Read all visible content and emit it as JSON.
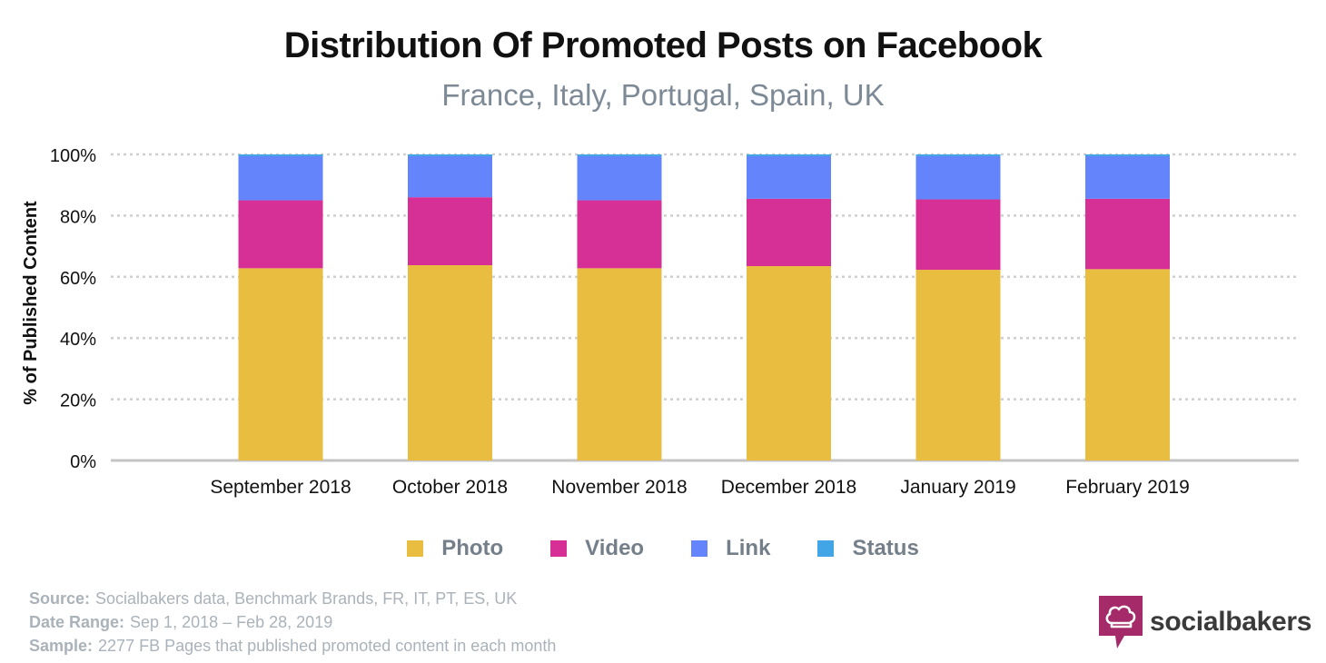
{
  "title": "Distribution Of Promoted Posts on Facebook",
  "subtitle": "France, Italy, Portugal, Spain, UK",
  "chart_data": {
    "type": "bar",
    "stacked": true,
    "categories": [
      "September 2018",
      "October 2018",
      "November 2018",
      "December 2018",
      "January 2019",
      "February 2019"
    ],
    "series": [
      {
        "name": "Photo",
        "color": "#e8bd40",
        "values": [
          62.8,
          63.8,
          62.8,
          63.5,
          62.3,
          62.5
        ]
      },
      {
        "name": "Video",
        "color": "#d62f95",
        "values": [
          22.2,
          22.2,
          22.2,
          22.0,
          23.0,
          23.0
        ]
      },
      {
        "name": "Link",
        "color": "#6384fb",
        "values": [
          14.4,
          13.4,
          14.4,
          13.9,
          14.1,
          13.9
        ]
      },
      {
        "name": "Status",
        "color": "#42a6e6",
        "values": [
          0.6,
          0.6,
          0.6,
          0.6,
          0.6,
          0.6
        ]
      }
    ],
    "ylabel": "% of Published Content",
    "xlabel": "",
    "ylim": [
      0,
      100
    ],
    "yticks": [
      "0%",
      "20%",
      "40%",
      "60%",
      "80%",
      "100%"
    ],
    "grid": true,
    "legend_position": "bottom"
  },
  "footnotes": [
    {
      "key": "Source:",
      "text": "Socialbakers data, Benchmark Brands, FR, IT, PT, ES, UK"
    },
    {
      "key": "Date Range:",
      "text": "Sep 1, 2018  – Feb 28, 2019"
    },
    {
      "key": "Sample:",
      "text": "2277 FB Pages that published promoted content in each month"
    }
  ],
  "brand": {
    "name": "socialbakers",
    "color": "#a52a6a"
  }
}
